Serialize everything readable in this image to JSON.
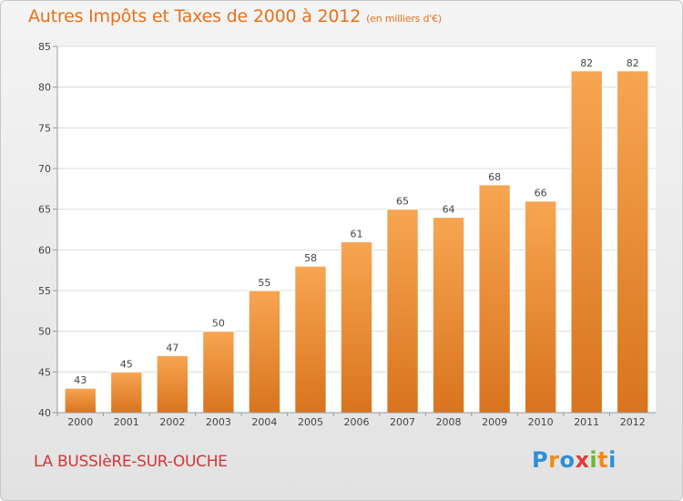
{
  "chart_data": {
    "type": "bar",
    "title": "Autres Impôts et Taxes de 2000 à 2012",
    "subtitle": "(en milliers d'€)",
    "categories": [
      "2000",
      "2001",
      "2002",
      "2003",
      "2004",
      "2005",
      "2006",
      "2007",
      "2008",
      "2009",
      "2010",
      "2011",
      "2012"
    ],
    "values": [
      43,
      45,
      47,
      50,
      55,
      58,
      61,
      65,
      64,
      68,
      66,
      82,
      82
    ],
    "ylim": [
      40,
      85
    ],
    "yticks": [
      40,
      45,
      50,
      55,
      60,
      65,
      70,
      75,
      80,
      85
    ],
    "grid": true,
    "bar_color": "#f0923a"
  },
  "footer": {
    "place": "LA BUSSIèRE-SUR-OUCHE",
    "logo": "Proxiti",
    "logo_colors": [
      "#2e8fd6",
      "#f08a1a",
      "#2e8fd6",
      "#e23b3b",
      "#6cb834",
      "#f08a1a",
      "#2e8fd6"
    ]
  }
}
